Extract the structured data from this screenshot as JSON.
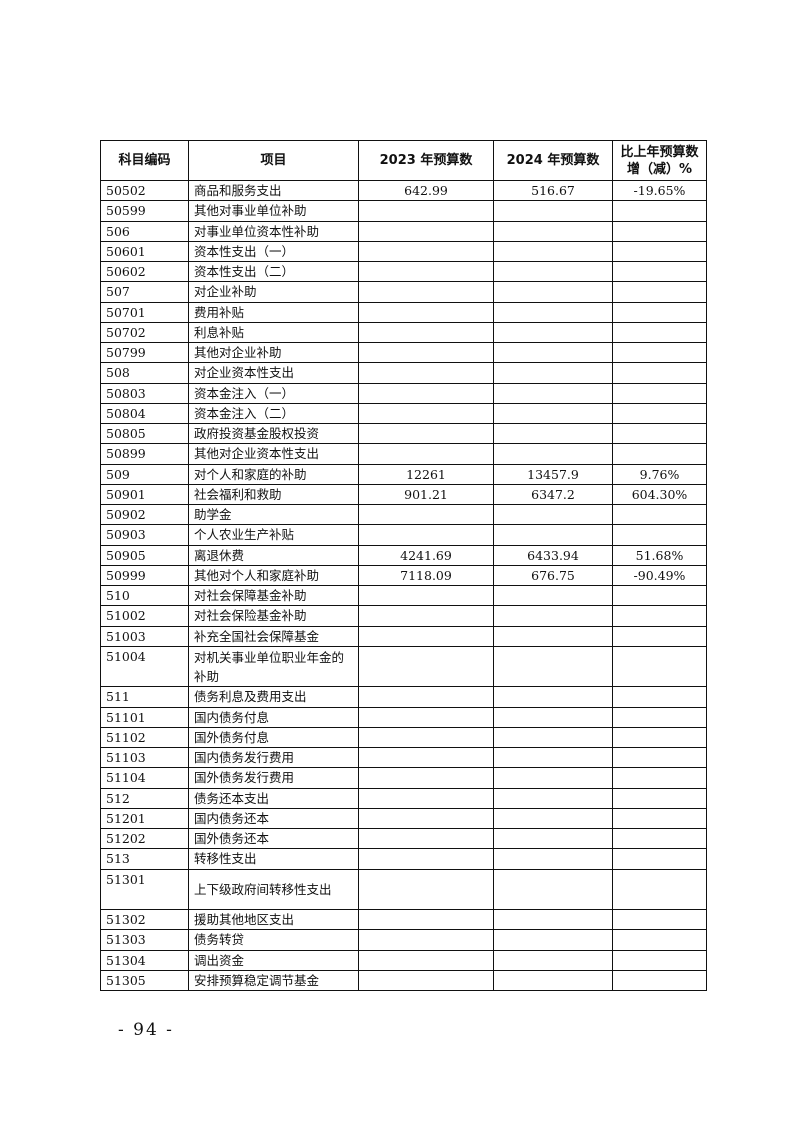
{
  "table": {
    "headers": [
      "科目编码",
      "项目",
      "2023 年预算数",
      "2024 年预算数",
      "比上年预算数增（减）%"
    ],
    "rows": [
      [
        "50502",
        "商品和服务支出",
        "642.99",
        "516.67",
        "-19.65%"
      ],
      [
        "50599",
        "其他对事业单位补助",
        "",
        "",
        ""
      ],
      [
        "506",
        "对事业单位资本性补助",
        "",
        "",
        ""
      ],
      [
        "50601",
        "资本性支出（一）",
        "",
        "",
        ""
      ],
      [
        "50602",
        "资本性支出（二）",
        "",
        "",
        ""
      ],
      [
        "507",
        "对企业补助",
        "",
        "",
        ""
      ],
      [
        "50701",
        "费用补贴",
        "",
        "",
        ""
      ],
      [
        "50702",
        "利息补贴",
        "",
        "",
        ""
      ],
      [
        "50799",
        "其他对企业补助",
        "",
        "",
        ""
      ],
      [
        "508",
        "对企业资本性支出",
        "",
        "",
        ""
      ],
      [
        "50803",
        "资本金注入（一）",
        "",
        "",
        ""
      ],
      [
        "50804",
        "资本金注入（二）",
        "",
        "",
        ""
      ],
      [
        "50805",
        "政府投资基金股权投资",
        "",
        "",
        ""
      ],
      [
        "50899",
        "其他对企业资本性支出",
        "",
        "",
        ""
      ],
      [
        "509",
        "对个人和家庭的补助",
        "12261",
        "13457.9",
        "9.76%"
      ],
      [
        "50901",
        "社会福利和救助",
        "901.21",
        "6347.2",
        "604.30%"
      ],
      [
        "50902",
        "助学金",
        "",
        "",
        ""
      ],
      [
        "50903",
        "个人农业生产补贴",
        "",
        "",
        ""
      ],
      [
        "50905",
        "离退休费",
        "4241.69",
        "6433.94",
        "51.68%"
      ],
      [
        "50999",
        "其他对个人和家庭补助",
        "7118.09",
        "676.75",
        "-90.49%"
      ],
      [
        "510",
        "对社会保障基金补助",
        "",
        "",
        ""
      ],
      [
        "51002",
        "对社会保险基金补助",
        "",
        "",
        ""
      ],
      [
        "51003",
        "补充全国社会保障基金",
        "",
        "",
        ""
      ],
      [
        "51004",
        "对机关事业单位职业年金的补助",
        "",
        "",
        ""
      ],
      [
        "511",
        "债务利息及费用支出",
        "",
        "",
        ""
      ],
      [
        "51101",
        "国内债务付息",
        "",
        "",
        ""
      ],
      [
        "51102",
        "国外债务付息",
        "",
        "",
        ""
      ],
      [
        "51103",
        "国内债务发行费用",
        "",
        "",
        ""
      ],
      [
        "51104",
        "国外债务发行费用",
        "",
        "",
        ""
      ],
      [
        "512",
        "债务还本支出",
        "",
        "",
        ""
      ],
      [
        "51201",
        "国内债务还本",
        "",
        "",
        ""
      ],
      [
        "51202",
        "国外债务还本",
        "",
        "",
        ""
      ],
      [
        "513",
        "转移性支出",
        "",
        "",
        ""
      ],
      [
        "51301",
        "上下级政府间转移性支出",
        "",
        "",
        ""
      ],
      [
        "51302",
        "援助其他地区支出",
        "",
        "",
        ""
      ],
      [
        "51303",
        "债务转贷",
        "",
        "",
        ""
      ],
      [
        "51304",
        "调出资金",
        "",
        "",
        ""
      ],
      [
        "51305",
        "安排预算稳定调节基金",
        "",
        "",
        ""
      ]
    ]
  },
  "page_number": "- 94 -"
}
